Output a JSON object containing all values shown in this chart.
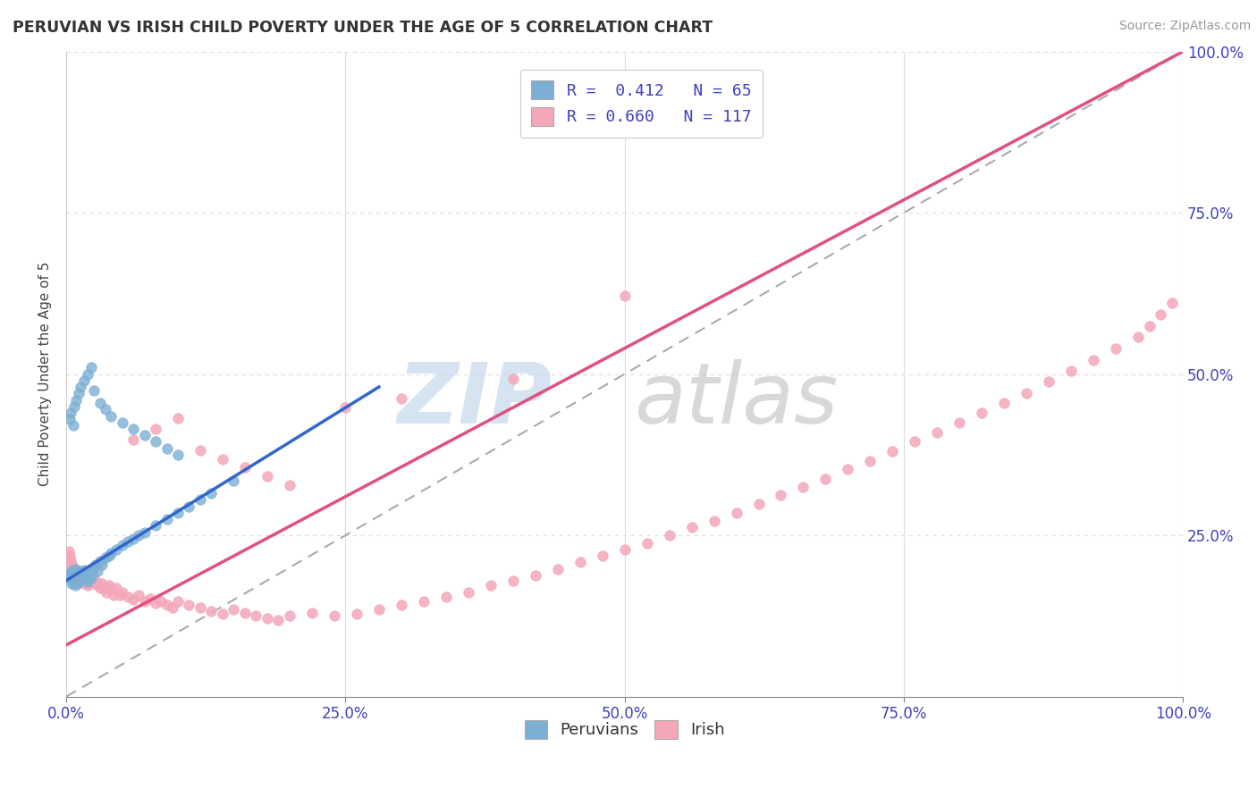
{
  "title": "PERUVIAN VS IRISH CHILD POVERTY UNDER THE AGE OF 5 CORRELATION CHART",
  "source": "Source: ZipAtlas.com",
  "ylabel": "Child Poverty Under the Age of 5",
  "xlim": [
    0.0,
    1.0
  ],
  "ylim": [
    0.0,
    1.0
  ],
  "xtick_labels": [
    "0.0%",
    "25.0%",
    "50.0%",
    "75.0%",
    "100.0%"
  ],
  "xtick_vals": [
    0.0,
    0.25,
    0.5,
    0.75,
    1.0
  ],
  "ytick_labels": [
    "25.0%",
    "50.0%",
    "75.0%",
    "100.0%"
  ],
  "ytick_vals": [
    0.25,
    0.5,
    0.75,
    1.0
  ],
  "peruvian_dot_color": "#7bafd4",
  "peruvian_line_color": "#3366cc",
  "irish_dot_color": "#f4a7b9",
  "irish_line_color": "#e05080",
  "diag_line_color": "#aaaaaa",
  "peruvian_R": 0.412,
  "peruvian_N": 65,
  "irish_R": 0.66,
  "irish_N": 117,
  "background_color": "#ffffff",
  "grid_color": "#dddddd",
  "watermark_zip_color": "#c5d8ea",
  "watermark_atlas_color": "#c8c8c8",
  "legend_label_1": "R =  0.412   N = 65",
  "legend_label_2": "R = 0.660   N = 117",
  "legend_text_color": "#4040bb",
  "bottom_legend_labels": [
    "Peruvians",
    "Irish"
  ],
  "peru_x": [
    0.002,
    0.003,
    0.005,
    0.005,
    0.006,
    0.007,
    0.008,
    0.008,
    0.009,
    0.01,
    0.01,
    0.011,
    0.012,
    0.013,
    0.014,
    0.015,
    0.016,
    0.017,
    0.018,
    0.019,
    0.02,
    0.021,
    0.022,
    0.023,
    0.025,
    0.026,
    0.028,
    0.03,
    0.032,
    0.035,
    0.038,
    0.04,
    0.045,
    0.05,
    0.055,
    0.06,
    0.065,
    0.07,
    0.08,
    0.09,
    0.1,
    0.11,
    0.12,
    0.13,
    0.15,
    0.003,
    0.004,
    0.006,
    0.007,
    0.009,
    0.011,
    0.013,
    0.016,
    0.019,
    0.022,
    0.025,
    0.03,
    0.035,
    0.04,
    0.05,
    0.06,
    0.07,
    0.08,
    0.09,
    0.1
  ],
  "peru_y": [
    0.185,
    0.19,
    0.175,
    0.195,
    0.18,
    0.188,
    0.172,
    0.198,
    0.183,
    0.177,
    0.192,
    0.186,
    0.18,
    0.195,
    0.188,
    0.182,
    0.196,
    0.19,
    0.185,
    0.178,
    0.192,
    0.187,
    0.183,
    0.196,
    0.2,
    0.205,
    0.195,
    0.21,
    0.205,
    0.215,
    0.218,
    0.222,
    0.228,
    0.235,
    0.24,
    0.245,
    0.25,
    0.255,
    0.265,
    0.275,
    0.285,
    0.295,
    0.305,
    0.315,
    0.335,
    0.43,
    0.44,
    0.42,
    0.45,
    0.46,
    0.47,
    0.48,
    0.49,
    0.5,
    0.51,
    0.475,
    0.455,
    0.445,
    0.435,
    0.425,
    0.415,
    0.405,
    0.395,
    0.385,
    0.375
  ],
  "irish_x": [
    0.001,
    0.002,
    0.002,
    0.003,
    0.003,
    0.004,
    0.004,
    0.005,
    0.005,
    0.006,
    0.006,
    0.007,
    0.007,
    0.008,
    0.008,
    0.009,
    0.009,
    0.01,
    0.01,
    0.011,
    0.011,
    0.012,
    0.013,
    0.014,
    0.015,
    0.016,
    0.017,
    0.018,
    0.019,
    0.02,
    0.022,
    0.024,
    0.026,
    0.028,
    0.03,
    0.032,
    0.034,
    0.036,
    0.038,
    0.04,
    0.042,
    0.045,
    0.048,
    0.05,
    0.055,
    0.06,
    0.065,
    0.07,
    0.075,
    0.08,
    0.085,
    0.09,
    0.095,
    0.1,
    0.11,
    0.12,
    0.13,
    0.14,
    0.15,
    0.16,
    0.17,
    0.18,
    0.19,
    0.2,
    0.22,
    0.24,
    0.26,
    0.28,
    0.3,
    0.32,
    0.34,
    0.36,
    0.38,
    0.4,
    0.42,
    0.44,
    0.46,
    0.48,
    0.5,
    0.52,
    0.54,
    0.56,
    0.58,
    0.6,
    0.62,
    0.64,
    0.66,
    0.68,
    0.7,
    0.72,
    0.74,
    0.76,
    0.78,
    0.8,
    0.82,
    0.84,
    0.86,
    0.88,
    0.9,
    0.92,
    0.94,
    0.96,
    0.97,
    0.98,
    0.99,
    0.06,
    0.08,
    0.1,
    0.12,
    0.14,
    0.16,
    0.18,
    0.2,
    0.25,
    0.3,
    0.4,
    0.5
  ],
  "irish_y": [
    0.215,
    0.205,
    0.225,
    0.2,
    0.218,
    0.195,
    0.21,
    0.192,
    0.205,
    0.188,
    0.2,
    0.185,
    0.198,
    0.182,
    0.195,
    0.179,
    0.192,
    0.176,
    0.188,
    0.18,
    0.192,
    0.185,
    0.178,
    0.188,
    0.182,
    0.175,
    0.185,
    0.179,
    0.172,
    0.182,
    0.176,
    0.188,
    0.179,
    0.172,
    0.168,
    0.175,
    0.168,
    0.162,
    0.172,
    0.165,
    0.158,
    0.168,
    0.158,
    0.162,
    0.155,
    0.15,
    0.158,
    0.148,
    0.152,
    0.145,
    0.148,
    0.142,
    0.138,
    0.148,
    0.142,
    0.138,
    0.132,
    0.128,
    0.135,
    0.13,
    0.125,
    0.122,
    0.118,
    0.125,
    0.13,
    0.125,
    0.128,
    0.135,
    0.142,
    0.148,
    0.155,
    0.162,
    0.172,
    0.18,
    0.188,
    0.198,
    0.208,
    0.218,
    0.228,
    0.238,
    0.25,
    0.262,
    0.272,
    0.285,
    0.298,
    0.312,
    0.325,
    0.338,
    0.352,
    0.365,
    0.38,
    0.395,
    0.41,
    0.425,
    0.44,
    0.455,
    0.47,
    0.488,
    0.505,
    0.522,
    0.54,
    0.558,
    0.575,
    0.592,
    0.61,
    0.398,
    0.415,
    0.432,
    0.382,
    0.368,
    0.355,
    0.342,
    0.328,
    0.448,
    0.462,
    0.492,
    0.622
  ],
  "peru_line_x": [
    0.0,
    0.28
  ],
  "peru_line_y": [
    0.18,
    0.48
  ],
  "irish_line_x": [
    0.0,
    1.0
  ],
  "irish_line_y": [
    0.08,
    1.0
  ]
}
